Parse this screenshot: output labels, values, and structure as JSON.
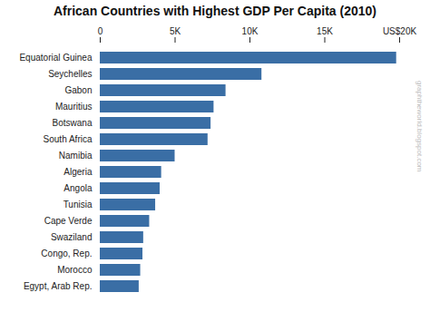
{
  "chart_data": {
    "type": "bar",
    "orientation": "horizontal",
    "title": "African Countries with Highest GDP Per Capita (2010)",
    "categories": [
      "Egypt, Arab Rep.",
      "Morocco",
      "Congo, Rep.",
      "Swaziland",
      "Cape Verde",
      "Tunisia",
      "Angola",
      "Algeria",
      "Namibia",
      "South Africa",
      "Botswana",
      "Mauritius",
      "Gabon",
      "Seychelles",
      "Equatorial Guinea"
    ],
    "values": [
      2600,
      2700,
      2850,
      2900,
      3300,
      3700,
      4000,
      4100,
      5000,
      7200,
      7400,
      7600,
      8400,
      10800,
      19800
    ],
    "color": "#3A6EA5",
    "xlim": [
      0,
      20000
    ],
    "xticks": [
      0,
      {
        "value": 5000,
        "label": "5K"
      },
      {
        "value": 10000,
        "label": "10K"
      },
      {
        "value": 15000,
        "label": "15K"
      },
      {
        "value": 20000,
        "label": "US$20K"
      }
    ],
    "grid": false,
    "annotations": [
      "graphtheworld.blogspot.com"
    ]
  }
}
